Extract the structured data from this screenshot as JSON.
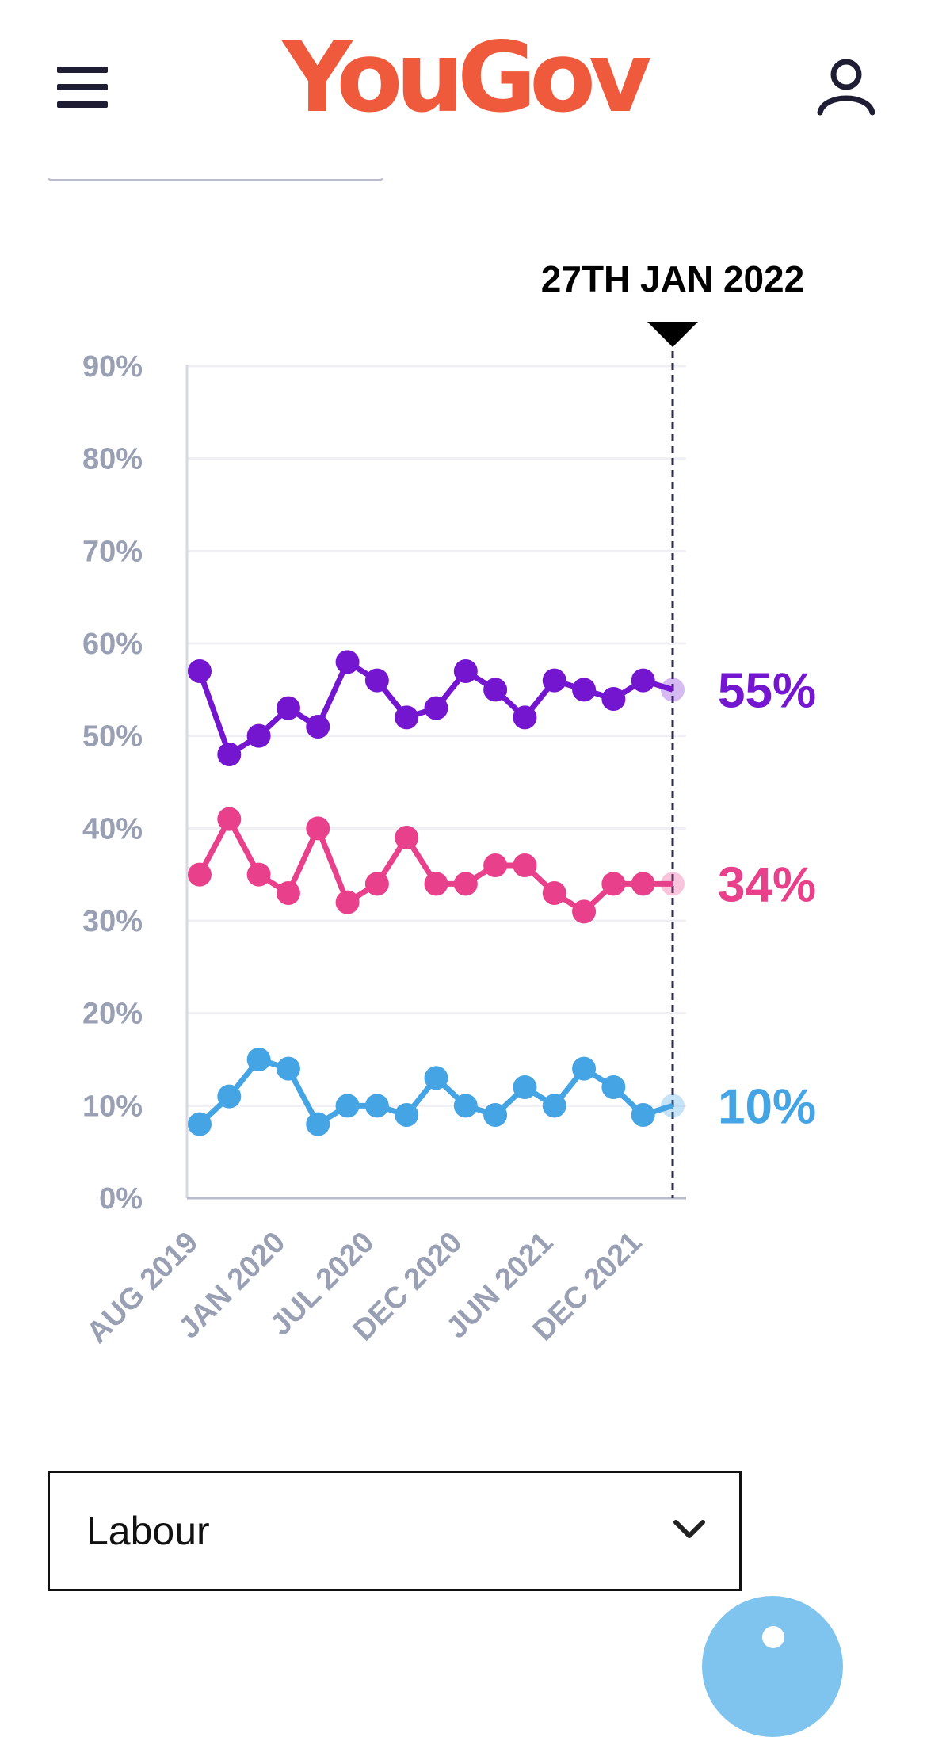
{
  "header": {
    "logo": "YouGov",
    "menu_icon": "hamburger-menu-icon",
    "user_icon": "user-account-icon"
  },
  "colors": {
    "brand": "#ef5a3d",
    "purple": "#7416d0",
    "pink": "#e8408a",
    "blue": "#45a4e4",
    "axis_text": "#9aa0b4",
    "icon": "#1f1d33"
  },
  "chart_data": {
    "type": "line",
    "marker_label": "27TH JAN 2022",
    "ylim": [
      0,
      90
    ],
    "y_ticks": [
      "0%",
      "10%",
      "20%",
      "30%",
      "40%",
      "50%",
      "60%",
      "70%",
      "80%",
      "90%"
    ],
    "x_ticks": [
      "AUG 2019",
      "JAN 2020",
      "JUL 2020",
      "DEC 2020",
      "JUN 2021",
      "DEC 2021"
    ],
    "grid": true,
    "series": [
      {
        "color": "#7416d0",
        "end_label": "55%",
        "values": [
          57,
          48,
          50,
          53,
          51,
          58,
          56,
          52,
          53,
          57,
          55,
          52,
          56,
          55,
          54,
          56,
          55
        ]
      },
      {
        "color": "#e8408a",
        "end_label": "34%",
        "values": [
          35,
          41,
          35,
          33,
          40,
          32,
          34,
          39,
          34,
          34,
          36,
          36,
          33,
          31,
          34,
          34,
          34
        ]
      },
      {
        "color": "#45a4e4",
        "end_label": "10%",
        "values": [
          8,
          11,
          15,
          14,
          8,
          10,
          10,
          9,
          13,
          10,
          9,
          12,
          10,
          14,
          12,
          9,
          10
        ]
      }
    ]
  },
  "selector": {
    "value": "Labour",
    "chevron_icon": "chevron-down-icon"
  },
  "help_icon": "help-chat-icon"
}
